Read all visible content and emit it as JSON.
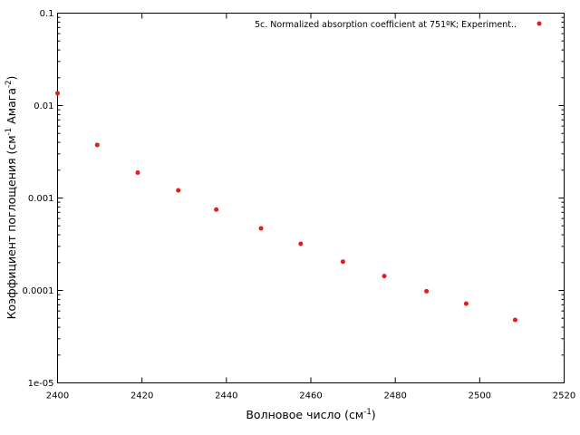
{
  "chart_data": {
    "type": "scatter",
    "title": "",
    "xlabel": {
      "main": "Волновое число (см",
      "sup": "-1",
      "end": ")"
    },
    "ylabel": {
      "p1": "Коэффициент поглощения (см",
      "sup1": "-1",
      "p2": " Амага",
      "sup2": "-2",
      "p3": ")"
    },
    "xlim": [
      2400,
      2520
    ],
    "ylim": [
      1e-05,
      0.1
    ],
    "yscale": "log",
    "grid": false,
    "legend_position": "top-right",
    "x_ticks": [
      2400,
      2420,
      2440,
      2460,
      2480,
      2500,
      2520
    ],
    "y_ticks": [
      {
        "value": 1e-05,
        "label": "1e-05"
      },
      {
        "value": 0.0001,
        "label": "0.0001"
      },
      {
        "value": 0.001,
        "label": "0.001"
      },
      {
        "value": 0.01,
        "label": "0.01"
      },
      {
        "value": 0.1,
        "label": "0.1"
      }
    ],
    "series": [
      {
        "name": "5c. Normalized absorption coefficient at 751ºK; Experiment..",
        "color": "#e41a1c",
        "x": [
          2400.0,
          2409.4,
          2419.0,
          2428.6,
          2437.6,
          2448.2,
          2457.6,
          2467.6,
          2477.4,
          2487.4,
          2496.8,
          2508.4
        ],
        "y": [
          0.0136,
          0.00375,
          0.00188,
          0.00121,
          0.00075,
          0.00047,
          0.00032,
          0.000205,
          0.000143,
          9.8e-05,
          7.2e-05,
          4.8e-05
        ]
      }
    ]
  }
}
